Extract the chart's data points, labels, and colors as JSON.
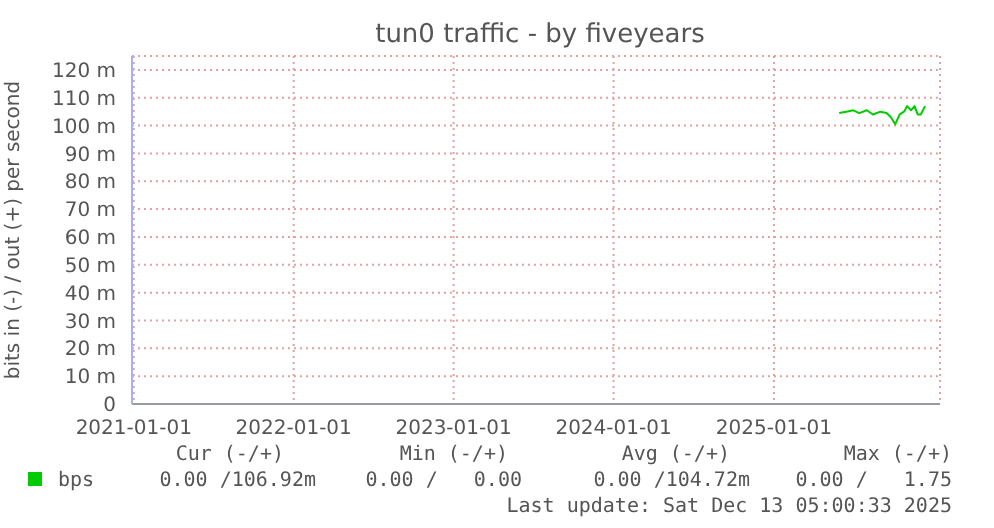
{
  "chart_data": {
    "type": "line",
    "title": "tun0 traffic - by fiveyears",
    "ylabel": "bits in (-) / out (+) per second",
    "xlim": [
      "2020-12-28",
      "2026-01-15"
    ],
    "xticks": [
      "2021-01-01",
      "2022-01-01",
      "2023-01-01",
      "2024-01-01",
      "2025-01-01"
    ],
    "ylim": [
      0,
      125
    ],
    "yticks": [
      0,
      {
        "value": 10,
        "label": "10 m"
      },
      {
        "value": 20,
        "label": "20 m"
      },
      {
        "value": 30,
        "label": "30 m"
      },
      {
        "value": 40,
        "label": "40 m"
      },
      {
        "value": 50,
        "label": "50 m"
      },
      {
        "value": 60,
        "label": "60 m"
      },
      {
        "value": 70,
        "label": "70 m"
      },
      {
        "value": 80,
        "label": "80 m"
      },
      {
        "value": 90,
        "label": "90 m"
      },
      {
        "value": 100,
        "label": "100 m"
      },
      {
        "value": 110,
        "label": "110 m"
      },
      {
        "value": 120,
        "label": "120 m"
      }
    ],
    "grid": true,
    "legend": "bottom left",
    "marker": "none",
    "line_style": "solid",
    "series": [
      {
        "name": "bps",
        "color": "#00cc00",
        "x": [
          "2025-05-30",
          "2025-06-15",
          "2025-07-01",
          "2025-07-15",
          "2025-08-01",
          "2025-08-15",
          "2025-09-01",
          "2025-09-15",
          "2025-09-25",
          "2025-10-05",
          "2025-10-15",
          "2025-10-25",
          "2025-11-01",
          "2025-11-10",
          "2025-11-18",
          "2025-11-25",
          "2025-12-02",
          "2025-12-12"
        ],
        "values": [
          104.5,
          105,
          105.5,
          104.5,
          105.5,
          104,
          105,
          104.5,
          103,
          100.5,
          104,
          105,
          107,
          105.5,
          107,
          104,
          104,
          107
        ]
      }
    ],
    "annotations": [
      "Cur (-/+)",
      "Min (-/+)",
      "Avg (-/+)",
      "Max (-/+)",
      "0.00 /106.92m",
      "0.00 /   0.00",
      "0.00 /104.72m",
      "0.00 /   1.75",
      "Last update: Sat Dec 13 05:00:33 2025"
    ]
  }
}
